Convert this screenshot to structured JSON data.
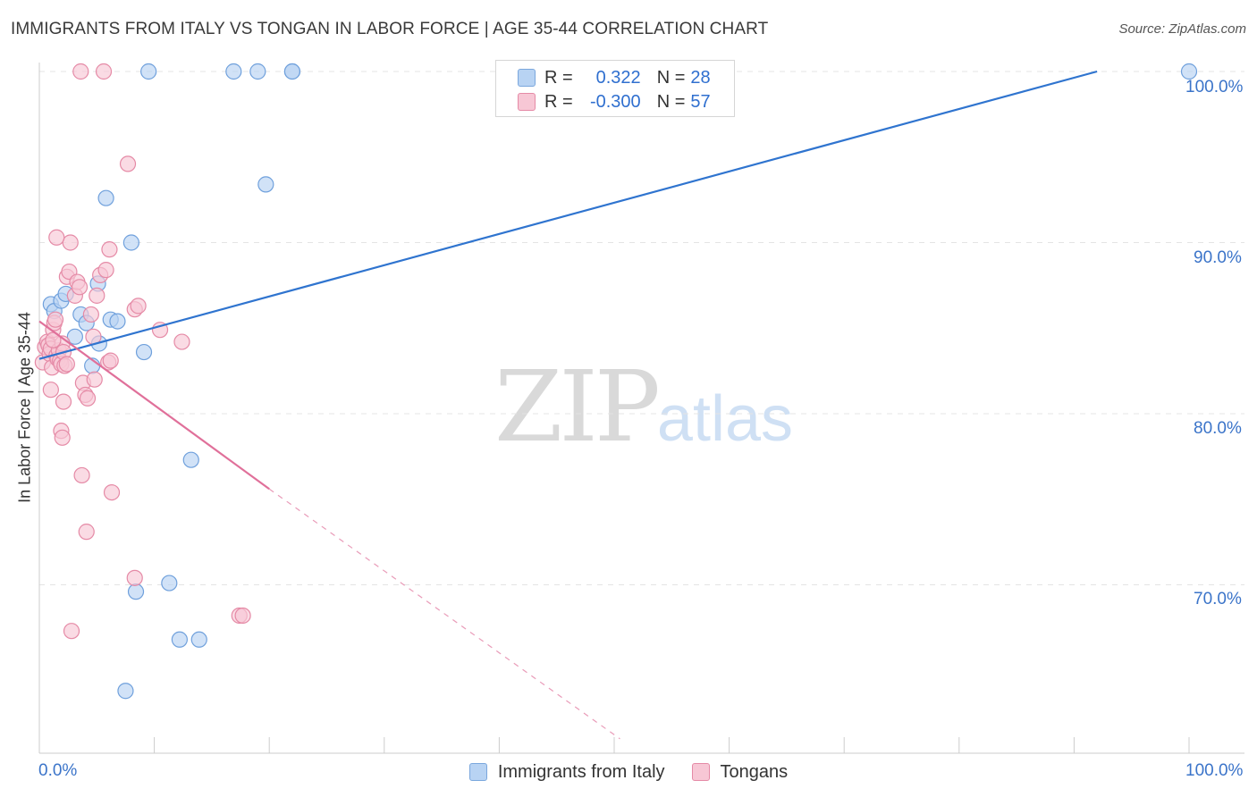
{
  "header": {
    "title": "IMMIGRANTS FROM ITALY VS TONGAN IN LABOR FORCE | AGE 35-44 CORRELATION CHART",
    "source": "Source: ZipAtlas.com"
  },
  "watermark": {
    "zip": "ZIP",
    "atlas": "atlas"
  },
  "legend": {
    "rows": [
      {
        "r_label": "R =",
        "r_value": "0.322",
        "n_label": "N =",
        "n_value": "28"
      },
      {
        "r_label": "R =",
        "r_value": "-0.300",
        "n_label": "N =",
        "n_value": "57"
      }
    ]
  },
  "colors": {
    "italy_fill": "#b8d3f3",
    "italy_stroke": "#6fa0dc",
    "italy_line": "#2f74cf",
    "tongan_fill": "#f7c7d5",
    "tongan_stroke": "#e58aa6",
    "tongan_line": "#e0709a",
    "grid": "#e4e4e4",
    "axis": "#cccccc"
  },
  "chart_data": {
    "type": "scatter",
    "title": "IMMIGRANTS FROM ITALY VS TONGAN IN LABOR FORCE | AGE 35-44 CORRELATION CHART",
    "xlabel": "",
    "ylabel": "In Labor Force | Age 35-44",
    "xlim": [
      0,
      100
    ],
    "ylim": [
      61,
      101.5
    ],
    "x_tick_labels": [
      "0.0%",
      "100.0%"
    ],
    "y_ticks": [
      100,
      90,
      80,
      70
    ],
    "y_tick_labels": [
      "100.0%",
      "90.0%",
      "80.0%",
      "70.0%"
    ],
    "legend_position": "top-center",
    "series": [
      {
        "name": "Immigrants from Italy",
        "r": 0.322,
        "n": 28,
        "points": [
          [
            1.0,
            86.4
          ],
          [
            1.3,
            86.0
          ],
          [
            1.9,
            86.6
          ],
          [
            2.3,
            87.0
          ],
          [
            3.1,
            84.5
          ],
          [
            3.6,
            85.8
          ],
          [
            4.1,
            85.3
          ],
          [
            4.6,
            82.8
          ],
          [
            5.1,
            87.6
          ],
          [
            5.2,
            84.1
          ],
          [
            6.2,
            85.5
          ],
          [
            6.8,
            85.4
          ],
          [
            5.8,
            92.6
          ],
          [
            8.0,
            90.0
          ],
          [
            9.1,
            83.6
          ],
          [
            9.5,
            100.0
          ],
          [
            13.2,
            77.3
          ],
          [
            11.3,
            70.1
          ],
          [
            8.4,
            69.6
          ],
          [
            7.5,
            63.8
          ],
          [
            12.2,
            66.8
          ],
          [
            13.9,
            66.8
          ],
          [
            16.9,
            100.0
          ],
          [
            19.0,
            100.0
          ],
          [
            19.7,
            93.4
          ],
          [
            22.0,
            100.0
          ],
          [
            100.0,
            100.0
          ],
          [
            22.0,
            100.0
          ]
        ],
        "trend": {
          "x": [
            0,
            92
          ],
          "y": [
            83.2,
            100.0
          ],
          "dashed_extension": false
        }
      },
      {
        "name": "Tongans",
        "r": -0.3,
        "n": 57,
        "points": [
          [
            0.3,
            83.0
          ],
          [
            0.5,
            83.9
          ],
          [
            0.7,
            84.2
          ],
          [
            0.8,
            84.0
          ],
          [
            0.9,
            83.5
          ],
          [
            1.0,
            83.8
          ],
          [
            1.1,
            82.7
          ],
          [
            1.2,
            84.9
          ],
          [
            1.3,
            85.3
          ],
          [
            1.4,
            85.5
          ],
          [
            1.5,
            83.4
          ],
          [
            1.6,
            83.2
          ],
          [
            1.7,
            83.7
          ],
          [
            1.8,
            83.1
          ],
          [
            1.9,
            82.9
          ],
          [
            2.0,
            84.1
          ],
          [
            2.1,
            83.6
          ],
          [
            2.2,
            82.8
          ],
          [
            1.0,
            81.4
          ],
          [
            2.1,
            80.7
          ],
          [
            1.9,
            79.0
          ],
          [
            2.0,
            78.6
          ],
          [
            2.4,
            88.0
          ],
          [
            2.6,
            88.3
          ],
          [
            2.7,
            90.0
          ],
          [
            1.5,
            90.3
          ],
          [
            3.1,
            86.9
          ],
          [
            3.3,
            87.7
          ],
          [
            3.5,
            87.4
          ],
          [
            3.8,
            81.8
          ],
          [
            4.0,
            81.1
          ],
          [
            4.2,
            80.9
          ],
          [
            4.5,
            85.8
          ],
          [
            4.7,
            84.5
          ],
          [
            4.8,
            82.0
          ],
          [
            5.0,
            86.9
          ],
          [
            5.3,
            88.1
          ],
          [
            5.8,
            88.4
          ],
          [
            6.0,
            83.0
          ],
          [
            6.2,
            83.1
          ],
          [
            6.1,
            89.6
          ],
          [
            6.3,
            75.4
          ],
          [
            3.7,
            76.4
          ],
          [
            4.1,
            73.1
          ],
          [
            7.7,
            94.6
          ],
          [
            8.3,
            86.1
          ],
          [
            8.6,
            86.3
          ],
          [
            10.5,
            84.9
          ],
          [
            12.4,
            84.2
          ],
          [
            8.3,
            70.4
          ],
          [
            17.4,
            68.2
          ],
          [
            17.7,
            68.2
          ],
          [
            2.8,
            67.3
          ],
          [
            3.6,
            100.0
          ],
          [
            5.6,
            100.0
          ],
          [
            2.4,
            82.9
          ],
          [
            1.2,
            84.3
          ]
        ],
        "trend": {
          "x": [
            0,
            20
          ],
          "y": [
            85.4,
            75.6
          ],
          "dashed_to": [
            50.5,
            61.0
          ]
        }
      }
    ]
  },
  "bottom_legend": {
    "items": [
      "Immigrants from Italy",
      "Tongans"
    ]
  }
}
